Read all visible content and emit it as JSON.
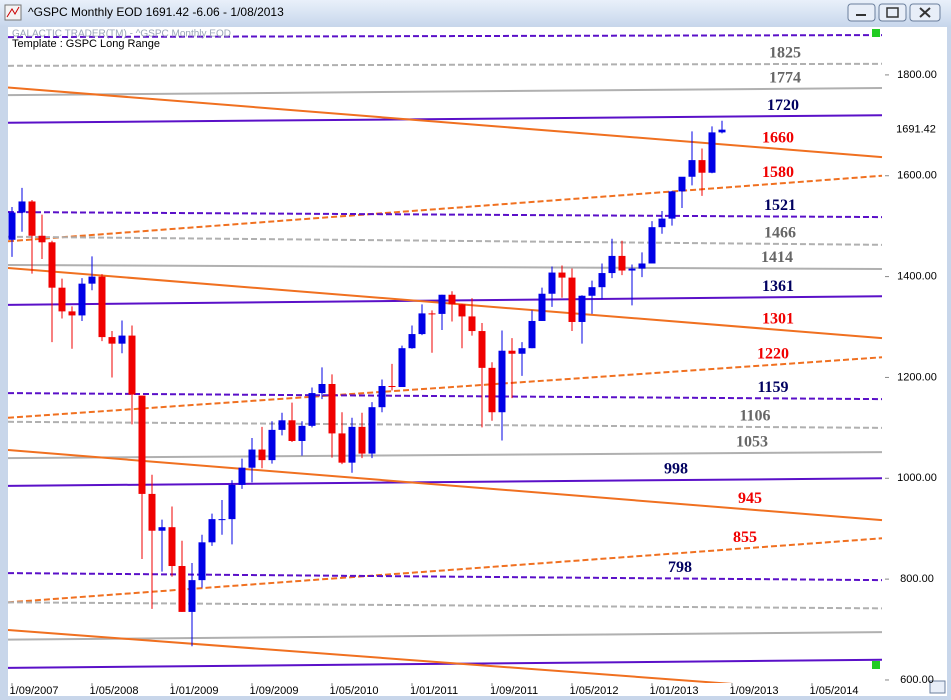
{
  "chart_data": {
    "type": "candlestick",
    "title": "^GSPC Monthly EOD 1691.42  -6.06 - 1/08/2013",
    "subtitle": "GALACTIC TRADER(TM) - ^GSPC Monthly EOD",
    "template": "Template : GSPC Long Range",
    "x": [
      "1/09/2007",
      "1/10/2007",
      "1/11/2007",
      "1/12/2007",
      "1/01/2008",
      "1/02/2008",
      "1/03/2008",
      "1/04/2008",
      "1/05/2008",
      "1/06/2008",
      "1/07/2008",
      "1/08/2008",
      "1/09/2008",
      "1/10/2008",
      "1/11/2008",
      "1/12/2008",
      "1/01/2009",
      "1/02/2009",
      "1/03/2009",
      "1/04/2009",
      "1/05/2009",
      "1/06/2009",
      "1/07/2009",
      "1/08/2009",
      "1/09/2009",
      "1/10/2009",
      "1/11/2009",
      "1/12/2009",
      "1/01/2010",
      "1/02/2010",
      "1/03/2010",
      "1/04/2010",
      "1/05/2010",
      "1/06/2010",
      "1/07/2010",
      "1/08/2010",
      "1/09/2010",
      "1/10/2010",
      "1/11/2010",
      "1/12/2010",
      "1/01/2011",
      "1/02/2011",
      "1/03/2011",
      "1/04/2011",
      "1/05/2011",
      "1/06/2011",
      "1/07/2011",
      "1/08/2011",
      "1/09/2011",
      "1/10/2011",
      "1/11/2011",
      "1/12/2011",
      "1/01/2012",
      "1/02/2012",
      "1/03/2012",
      "1/04/2012",
      "1/05/2012",
      "1/06/2012",
      "1/07/2012",
      "1/08/2012",
      "1/09/2012",
      "1/10/2012",
      "1/11/2012",
      "1/12/2012",
      "1/01/2013",
      "1/02/2013",
      "1/03/2013",
      "1/04/2013",
      "1/05/2013",
      "1/06/2013",
      "1/07/2013",
      "1/08/2013"
    ],
    "open": [
      1473,
      1527,
      1549,
      1481,
      1468,
      1378,
      1331,
      1323,
      1386,
      1400,
      1280,
      1267,
      1283,
      1164,
      969,
      896,
      903,
      826,
      735,
      798,
      873,
      919,
      919,
      987,
      1021,
      1057,
      1036,
      1096,
      1115,
      1074,
      1104,
      1169,
      1187,
      1089,
      1031,
      1102,
      1049,
      1141,
      1183,
      1181,
      1258,
      1286,
      1327,
      1326,
      1364,
      1345,
      1321,
      1292,
      1219,
      1131,
      1253,
      1247,
      1258,
      1312,
      1366,
      1408,
      1398,
      1310,
      1362,
      1379,
      1407,
      1441,
      1412,
      1416,
      1426,
      1498,
      1515,
      1569,
      1598,
      1631,
      1606,
      1686
    ],
    "high": [
      1538,
      1576,
      1552,
      1523,
      1471,
      1396,
      1341,
      1397,
      1440,
      1405,
      1292,
      1313,
      1303,
      1164,
      1007,
      918,
      944,
      876,
      832,
      888,
      930,
      957,
      996,
      1039,
      1080,
      1102,
      1113,
      1130,
      1150,
      1113,
      1180,
      1220,
      1206,
      1131,
      1120,
      1130,
      1151,
      1196,
      1227,
      1263,
      1303,
      1345,
      1333,
      1364,
      1371,
      1346,
      1357,
      1308,
      1230,
      1293,
      1278,
      1270,
      1333,
      1378,
      1420,
      1422,
      1416,
      1363,
      1392,
      1426,
      1475,
      1471,
      1424,
      1448,
      1510,
      1530,
      1570,
      1597,
      1688,
      1654,
      1698,
      1709
    ],
    "low": [
      1439,
      1489,
      1406,
      1435,
      1270,
      1317,
      1257,
      1312,
      1373,
      1272,
      1200,
      1248,
      1107,
      840,
      741,
      815,
      805,
      735,
      667,
      783,
      866,
      888,
      869,
      979,
      992,
      1020,
      1029,
      1085,
      1072,
      1045,
      1101,
      1157,
      1041,
      1028,
      1011,
      1040,
      1040,
      1131,
      1174,
      1181,
      1257,
      1284,
      1249,
      1294,
      1311,
      1258,
      1283,
      1101,
      1114,
      1075,
      1159,
      1203,
      1258,
      1312,
      1340,
      1358,
      1292,
      1267,
      1326,
      1355,
      1397,
      1403,
      1343,
      1399,
      1426,
      1485,
      1501,
      1536,
      1581,
      1560,
      1605,
      1684
    ],
    "close": [
      1527,
      1549,
      1481,
      1468,
      1378,
      1331,
      1323,
      1386,
      1400,
      1280,
      1267,
      1283,
      1166,
      969,
      896,
      903,
      826,
      735,
      798,
      873,
      919,
      919,
      987,
      1021,
      1057,
      1036,
      1096,
      1115,
      1074,
      1104,
      1169,
      1187,
      1089,
      1031,
      1102,
      1049,
      1141,
      1183,
      1181,
      1258,
      1286,
      1327,
      1326,
      1364,
      1345,
      1321,
      1292,
      1219,
      1131,
      1253,
      1247,
      1258,
      1312,
      1366,
      1408,
      1398,
      1310,
      1362,
      1379,
      1407,
      1441,
      1412,
      1416,
      1426,
      1498,
      1515,
      1569,
      1598,
      1631,
      1606,
      1686,
      1691.42
    ],
    "up_color": "#0000e6",
    "down_color": "#f00000",
    "last_price": 1691.42,
    "ylim": [
      594,
      1895
    ],
    "yticks": [
      {
        "value": 600,
        "label": "600.00"
      },
      {
        "value": 800,
        "label": "800.00"
      },
      {
        "value": 1000,
        "label": "1000.00"
      },
      {
        "value": 1200,
        "label": "1200.00"
      },
      {
        "value": 1400,
        "label": "1400.00"
      },
      {
        "value": 1600,
        "label": "1600.00"
      },
      {
        "value": 1800,
        "label": "1800.00"
      }
    ],
    "xticks": [
      "1/09/2007",
      "1/05/2008",
      "1/01/2009",
      "1/09/2009",
      "1/05/2010",
      "1/01/2011",
      "1/09/2011",
      "1/05/2012",
      "1/01/2013",
      "1/09/2013",
      "1/05/2014"
    ],
    "levels": [
      {
        "color": "#5a10c8",
        "style": "dashed",
        "start": 1875,
        "end": 1879
      },
      {
        "label": "1825",
        "label_color": "#666666",
        "color": "#b0b0b0",
        "style": "dashed",
        "start": 1818,
        "end": 1822
      },
      {
        "label": "1774",
        "label_color": "#666666",
        "color": "#b0b0b0",
        "style": "solid",
        "start": 1760,
        "end": 1774
      },
      {
        "label": "1720",
        "label_color": "#000060",
        "color": "#5a10c8",
        "style": "solid",
        "start": 1705,
        "end": 1720
      },
      {
        "label": "1660",
        "label_color": "#f00000",
        "color": "#f07020",
        "style": "solid",
        "start": 1775,
        "end": 1637
      },
      {
        "label": "1580",
        "label_color": "#f00000",
        "color": "#f07020",
        "style": "dashed",
        "start": 1470,
        "end": 1600
      },
      {
        "label": "1521",
        "label_color": "#000060",
        "color": "#5a10c8",
        "style": "dashed",
        "start": 1528,
        "end": 1518
      },
      {
        "label": "1466",
        "label_color": "#666666",
        "color": "#b0b0b0",
        "style": "dashed",
        "start": 1479,
        "end": 1463
      },
      {
        "label": "1414",
        "label_color": "#666666",
        "color": "#b0b0b0",
        "style": "solid",
        "start": 1423,
        "end": 1415
      },
      {
        "label": "1361",
        "label_color": "#000060",
        "color": "#5a10c8",
        "style": "solid",
        "start": 1344,
        "end": 1361
      },
      {
        "label": "1301",
        "label_color": "#f00000",
        "color": "#f07020",
        "style": "solid",
        "start": 1417,
        "end": 1278
      },
      {
        "label": "1220",
        "label_color": "#f00000",
        "color": "#f07020",
        "style": "dashed",
        "start": 1120,
        "end": 1240
      },
      {
        "label": "1159",
        "label_color": "#000060",
        "color": "#5a10c8",
        "style": "dashed",
        "start": 1169,
        "end": 1157
      },
      {
        "label": "1106",
        "label_color": "#666666",
        "color": "#b0b0b0",
        "style": "dashed",
        "start": 1112,
        "end": 1100
      },
      {
        "label": "1053",
        "label_color": "#666666",
        "color": "#b0b0b0",
        "style": "solid",
        "start": 1040,
        "end": 1052
      },
      {
        "label": "998",
        "label_color": "#000060",
        "color": "#5a10c8",
        "style": "solid",
        "start": 985,
        "end": 1000
      },
      {
        "label": "945",
        "label_color": "#f00000",
        "color": "#f07020",
        "style": "solid",
        "start": 1056,
        "end": 917
      },
      {
        "label": "855",
        "label_color": "#f00000",
        "color": "#f07020",
        "style": "dashed",
        "start": 754,
        "end": 881
      },
      {
        "label": "798",
        "label_color": "#000060",
        "color": "#5a10c8",
        "style": "dashed",
        "start": 812,
        "end": 798
      },
      {
        "color": "#b0b0b0",
        "style": "dashed",
        "start": 754,
        "end": 742
      },
      {
        "color": "#b0b0b0",
        "style": "solid",
        "start": 680,
        "end": 695
      },
      {
        "color": "#5a10c8",
        "style": "solid",
        "start": 624,
        "end": 640
      },
      {
        "color": "#f07020",
        "style": "solid",
        "start": 699,
        "end": 570
      }
    ]
  }
}
